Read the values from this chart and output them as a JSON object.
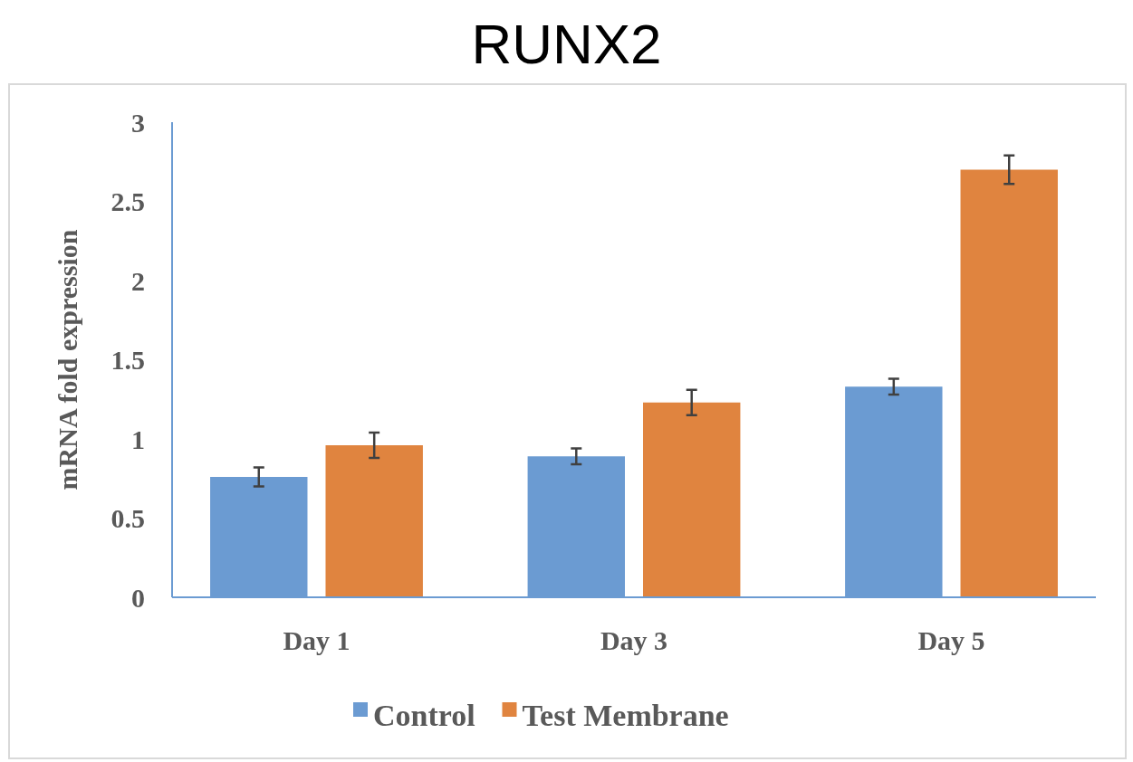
{
  "chart_data": {
    "type": "bar",
    "title": "RUNX2",
    "ylabel": "mRNA fold expression",
    "categories": [
      "Day 1",
      "Day 3",
      "Day 5"
    ],
    "series": [
      {
        "name": "Control",
        "color": "#6b9bd2",
        "values": [
          0.76,
          0.89,
          1.33
        ],
        "errors": [
          0.06,
          0.05,
          0.05
        ]
      },
      {
        "name": "Test Membrane",
        "color": "#e0843f",
        "values": [
          0.96,
          1.23,
          2.7
        ],
        "errors": [
          0.08,
          0.08,
          0.09
        ]
      }
    ],
    "ylim": [
      0,
      3
    ],
    "yticks": [
      0,
      0.5,
      1,
      1.5,
      2,
      2.5,
      3
    ],
    "grid": false,
    "legend": "bottom"
  }
}
